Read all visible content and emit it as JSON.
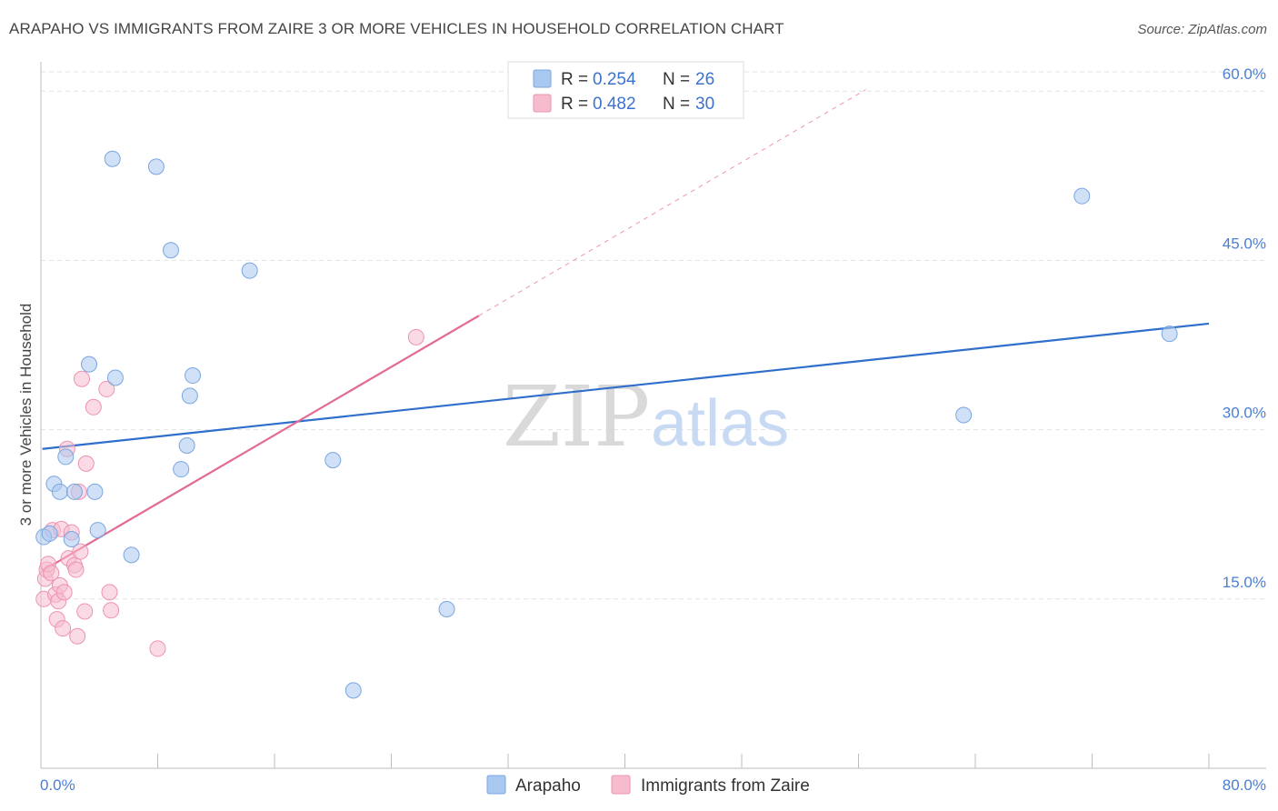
{
  "header": {
    "title": "ARAPAHO VS IMMIGRANTS FROM ZAIRE 3 OR MORE VEHICLES IN HOUSEHOLD CORRELATION CHART",
    "source": "Source: ZipAtlas.com"
  },
  "watermark": {
    "zip": "ZIP",
    "atlas": "atlas"
  },
  "colors": {
    "arapaho_fill": "#a9c8f0",
    "arapaho_stroke": "#7aa6e0",
    "arapaho_line": "#2f6fcb",
    "zaire_fill": "#f6bccd",
    "zaire_stroke": "#ee93b0",
    "zaire_line": "#e36a93",
    "grid": "#e3e3e3",
    "axis_text": "#4a7fd4"
  },
  "legend": {
    "rows": [
      {
        "r_label": "R = ",
        "r_value": "0.254",
        "n_label": "N = ",
        "n_value": "26"
      },
      {
        "r_label": "R = ",
        "r_value": "0.482",
        "n_label": "N = ",
        "n_value": "30"
      }
    ]
  },
  "chart_data": {
    "type": "scatter",
    "title": "ARAPAHO VS IMMIGRANTS FROM ZAIRE 3 OR MORE VEHICLES IN HOUSEHOLD CORRELATION CHART",
    "xlabel": "",
    "ylabel": "3 or more Vehicles in Household",
    "xlim": [
      0,
      80
    ],
    "ylim": [
      0,
      63
    ],
    "x_tick_labels": [
      "0.0%",
      "80.0%"
    ],
    "y_ticks": [
      15,
      30,
      45,
      60
    ],
    "y_tick_labels": [
      "15.0%",
      "30.0%",
      "45.0%",
      "60.0%"
    ],
    "grid": true,
    "legend_position": "top-center",
    "series": [
      {
        "name": "Arapaho",
        "points": [
          [
            0.2,
            20.5
          ],
          [
            0.6,
            20.8
          ],
          [
            0.9,
            25.2
          ],
          [
            1.3,
            24.5
          ],
          [
            1.7,
            27.6
          ],
          [
            2.1,
            20.3
          ],
          [
            2.3,
            24.5
          ],
          [
            3.3,
            35.8
          ],
          [
            3.7,
            24.5
          ],
          [
            3.9,
            21.1
          ],
          [
            4.9,
            54.0
          ],
          [
            5.1,
            34.6
          ],
          [
            6.2,
            18.9
          ],
          [
            7.9,
            53.3
          ],
          [
            8.9,
            45.9
          ],
          [
            9.6,
            26.5
          ],
          [
            10.0,
            28.6
          ],
          [
            10.2,
            33.0
          ],
          [
            10.4,
            34.8
          ],
          [
            14.3,
            44.1
          ],
          [
            20.0,
            27.3
          ],
          [
            21.4,
            6.9
          ],
          [
            27.8,
            14.1
          ],
          [
            63.2,
            31.3
          ],
          [
            71.3,
            50.7
          ],
          [
            77.3,
            38.5
          ]
        ],
        "trend": {
          "x": [
            0.1,
            80.0
          ],
          "y": [
            28.3,
            39.4
          ]
        }
      },
      {
        "name": "Immigrants from Zaire",
        "points": [
          [
            0.2,
            15.0
          ],
          [
            0.3,
            16.8
          ],
          [
            0.4,
            17.6
          ],
          [
            0.5,
            18.1
          ],
          [
            0.7,
            17.3
          ],
          [
            0.8,
            21.1
          ],
          [
            1.0,
            15.4
          ],
          [
            1.1,
            13.2
          ],
          [
            1.2,
            14.8
          ],
          [
            1.3,
            16.2
          ],
          [
            1.4,
            21.2
          ],
          [
            1.5,
            12.4
          ],
          [
            1.6,
            15.6
          ],
          [
            1.8,
            28.3
          ],
          [
            1.9,
            18.6
          ],
          [
            2.1,
            20.9
          ],
          [
            2.3,
            18.0
          ],
          [
            2.4,
            17.6
          ],
          [
            2.5,
            11.7
          ],
          [
            2.6,
            24.5
          ],
          [
            2.7,
            19.2
          ],
          [
            2.8,
            34.5
          ],
          [
            3.0,
            13.9
          ],
          [
            3.1,
            27.0
          ],
          [
            3.6,
            32.0
          ],
          [
            4.5,
            33.6
          ],
          [
            4.7,
            15.6
          ],
          [
            4.8,
            14.0
          ],
          [
            8.0,
            10.6
          ],
          [
            25.7,
            38.2
          ]
        ],
        "trend": {
          "x": [
            0.1,
            30.0
          ],
          "y": [
            17.5,
            40.1
          ],
          "dashed_extension_to_x": 56.5
        }
      }
    ]
  },
  "bottom_legend": {
    "items": [
      {
        "label": "Arapaho"
      },
      {
        "label": "Immigrants from Zaire"
      }
    ]
  }
}
